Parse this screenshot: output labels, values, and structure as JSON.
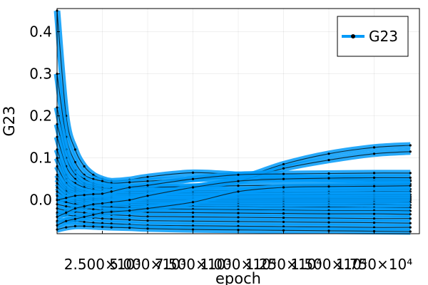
{
  "chart_data": {
    "type": "line",
    "title": "",
    "xlabel": "epoch",
    "ylabel": "G23",
    "xlim": [
      0,
      20000
    ],
    "ylim": [
      -0.08,
      0.455
    ],
    "x_ticks": [
      {
        "value": 2500,
        "label": "2.500×10³"
      },
      {
        "value": 5000,
        "label": "5.000×10³"
      },
      {
        "value": 7500,
        "label": "7.500×10³"
      },
      {
        "value": 10000,
        "label": "1.000×10⁴"
      },
      {
        "value": 12500,
        "label": "1.250×10⁴"
      },
      {
        "value": 15000,
        "label": "1.500×10⁴"
      },
      {
        "value": 17500,
        "label": "1.750×10⁴"
      }
    ],
    "y_ticks": [
      {
        "value": 0.0,
        "label": "0.0"
      },
      {
        "value": 0.1,
        "label": "0.1"
      },
      {
        "value": 0.2,
        "label": "0.2"
      },
      {
        "value": 0.3,
        "label": "0.3"
      },
      {
        "value": 0.4,
        "label": "0.4"
      }
    ],
    "grid": true,
    "legend_position": "top-right",
    "legend": [
      {
        "name": "G23",
        "color": "#009af9"
      }
    ],
    "series_color": "#009af9",
    "marker_color": "#000000",
    "x": [
      0,
      500,
      1000,
      1500,
      2000,
      2500,
      3000,
      4000,
      5000,
      7500,
      10000,
      12500,
      15000,
      17500,
      19500
    ],
    "series": [
      {
        "values": [
          0.45,
          0.2,
          0.12,
          0.08,
          0.06,
          0.05,
          0.045,
          0.048,
          0.055,
          0.065,
          0.06,
          0.055,
          0.05,
          0.045,
          0.045
        ]
      },
      {
        "values": [
          0.3,
          0.15,
          0.09,
          0.06,
          0.05,
          0.045,
          0.04,
          0.042,
          0.045,
          0.05,
          0.052,
          0.05,
          0.05,
          0.048,
          0.047
        ]
      },
      {
        "values": [
          0.22,
          0.12,
          0.07,
          0.05,
          0.04,
          0.035,
          0.032,
          0.03,
          0.03,
          0.031,
          0.05,
          0.085,
          0.11,
          0.125,
          0.13
        ]
      },
      {
        "values": [
          0.18,
          0.1,
          0.06,
          0.04,
          0.035,
          0.03,
          0.028,
          0.027,
          0.026,
          0.026,
          0.045,
          0.075,
          0.095,
          0.11,
          0.115
        ]
      },
      {
        "values": [
          0.15,
          0.08,
          0.05,
          0.035,
          0.03,
          0.028,
          0.027,
          0.028,
          0.03,
          0.032,
          0.034,
          0.035,
          0.036,
          0.037,
          0.038
        ]
      },
      {
        "values": [
          0.12,
          0.06,
          0.04,
          0.03,
          0.025,
          0.022,
          0.02,
          0.02,
          0.021,
          0.022,
          0.023,
          0.024,
          0.025,
          0.026,
          0.026
        ]
      },
      {
        "values": [
          0.1,
          0.05,
          0.03,
          0.022,
          0.018,
          0.016,
          0.015,
          0.015,
          0.016,
          0.017,
          0.018,
          0.018,
          0.019,
          0.02,
          0.02
        ]
      },
      {
        "values": [
          0.08,
          0.04,
          0.025,
          0.018,
          0.014,
          0.012,
          0.011,
          0.01,
          0.01,
          0.011,
          0.012,
          0.012,
          0.013,
          0.013,
          0.013
        ]
      },
      {
        "values": [
          0.06,
          0.03,
          0.02,
          0.014,
          0.01,
          0.008,
          0.007,
          0.006,
          0.006,
          0.006,
          0.007,
          0.007,
          0.007,
          0.008,
          0.008
        ]
      },
      {
        "values": [
          0.05,
          0.025,
          0.015,
          0.01,
          0.007,
          0.005,
          0.004,
          0.003,
          0.003,
          0.003,
          0.003,
          0.004,
          0.004,
          0.004,
          0.004
        ]
      },
      {
        "values": [
          0.04,
          0.02,
          0.01,
          0.006,
          0.004,
          0.002,
          0.001,
          0.0,
          0.0,
          0.0,
          0.0,
          0.0,
          0.0,
          0.0,
          0.0
        ]
      },
      {
        "values": [
          0.03,
          0.012,
          0.005,
          0.002,
          0.0,
          -0.002,
          -0.003,
          -0.004,
          -0.004,
          -0.004,
          -0.005,
          -0.005,
          -0.005,
          -0.005,
          -0.005
        ]
      },
      {
        "values": [
          0.02,
          0.005,
          0.0,
          -0.003,
          -0.005,
          -0.006,
          -0.007,
          -0.008,
          -0.009,
          -0.01,
          -0.01,
          -0.011,
          -0.011,
          -0.011,
          -0.012
        ]
      },
      {
        "values": [
          0.01,
          0.0,
          -0.005,
          -0.008,
          -0.01,
          -0.011,
          -0.012,
          -0.013,
          -0.014,
          -0.015,
          -0.016,
          -0.017,
          -0.017,
          -0.018,
          -0.018
        ]
      },
      {
        "values": [
          0.0,
          -0.005,
          -0.01,
          -0.012,
          -0.014,
          -0.016,
          -0.017,
          -0.018,
          -0.02,
          -0.022,
          -0.023,
          -0.024,
          -0.025,
          -0.025,
          -0.026
        ]
      },
      {
        "values": [
          -0.01,
          -0.015,
          -0.018,
          -0.02,
          -0.022,
          -0.024,
          -0.025,
          -0.027,
          -0.029,
          -0.03,
          -0.031,
          -0.032,
          -0.033,
          -0.033,
          -0.034
        ]
      },
      {
        "values": [
          -0.02,
          -0.025,
          -0.028,
          -0.03,
          -0.032,
          -0.034,
          -0.035,
          -0.037,
          -0.039,
          -0.04,
          -0.041,
          -0.042,
          -0.043,
          -0.044,
          -0.044
        ]
      },
      {
        "values": [
          -0.03,
          -0.035,
          -0.038,
          -0.04,
          -0.042,
          -0.044,
          -0.045,
          -0.047,
          -0.049,
          -0.05,
          -0.051,
          -0.052,
          -0.053,
          -0.054,
          -0.055
        ]
      },
      {
        "values": [
          -0.05,
          -0.05,
          -0.05,
          -0.052,
          -0.054,
          -0.055,
          -0.056,
          -0.058,
          -0.06,
          -0.061,
          -0.062,
          -0.063,
          -0.064,
          -0.065,
          -0.065
        ]
      },
      {
        "values": [
          -0.07,
          -0.065,
          -0.062,
          -0.062,
          -0.063,
          -0.064,
          -0.065,
          -0.066,
          -0.068,
          -0.07,
          -0.071,
          -0.072,
          -0.073,
          -0.074,
          -0.075
        ]
      },
      {
        "values": [
          0.0,
          0.005,
          0.01,
          0.012,
          0.014,
          0.015,
          0.02,
          0.03,
          0.035,
          0.05,
          0.06,
          0.062,
          0.063,
          0.064,
          0.064
        ]
      },
      {
        "values": [
          -0.04,
          -0.03,
          -0.02,
          -0.015,
          -0.01,
          -0.008,
          -0.005,
          0.0,
          0.01,
          0.03,
          0.045,
          0.05,
          0.052,
          0.053,
          0.053
        ]
      },
      {
        "values": [
          -0.06,
          -0.05,
          -0.045,
          -0.04,
          -0.035,
          -0.03,
          -0.028,
          -0.025,
          -0.02,
          -0.005,
          0.02,
          0.03,
          0.032,
          0.033,
          0.034
        ]
      }
    ]
  }
}
